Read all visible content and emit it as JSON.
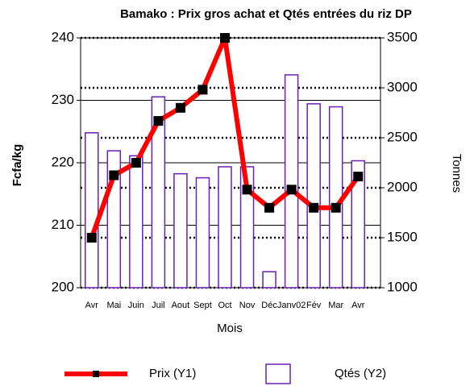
{
  "chart_data": {
    "type": "combo",
    "title": "Bamako : Prix  gros achat et Qtés entrées  du riz DP",
    "x_label": "Mois",
    "y_label": "Fcfa/kg",
    "y2_label": "Tonnes",
    "categories": [
      "Avr",
      "Mai",
      "Juin",
      "Juil",
      "Aout",
      "Sept",
      "Oct",
      "Nov",
      "Déc",
      "Janv02",
      "Fév",
      "Mar",
      "Avr"
    ],
    "series": [
      {
        "name": "Prix (Y1)",
        "type": "line",
        "color": "#ff0000",
        "marker_color": "#000000",
        "values": [
          208,
          218,
          220,
          226.7,
          228.8,
          231.7,
          240,
          215.7,
          212.8,
          215.7,
          212.8,
          212.8,
          217.8
        ]
      },
      {
        "name": "Qtés (Y2)",
        "type": "bar",
        "axis": "y2",
        "color": "#6a1fb5",
        "values": [
          2550,
          2370,
          2320,
          2910,
          2140,
          2100,
          2210,
          2210,
          1160,
          3130,
          2840,
          2810,
          2270
        ]
      }
    ],
    "ylim": [
      200,
      240
    ],
    "yticks": [
      200,
      210,
      220,
      230,
      240
    ],
    "y2lim": [
      1000,
      3500
    ],
    "y2ticks": [
      1000,
      1500,
      2000,
      2500,
      3000,
      3500
    ],
    "grid": true,
    "legend": "bottom"
  }
}
